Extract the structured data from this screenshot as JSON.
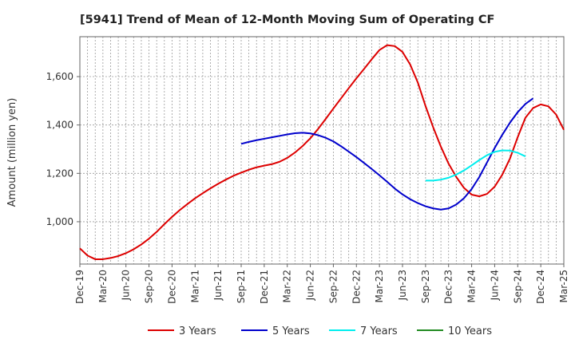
{
  "chart_data": {
    "type": "line",
    "title": "[5941]  Trend of Mean of 12-Month Moving Sum of Operating CF",
    "xlabel": "",
    "ylabel": "Amount (million yen)",
    "ylim": [
      825,
      1765
    ],
    "yticks": [
      1000,
      1200,
      1400,
      1600
    ],
    "ytick_labels": [
      "1,000",
      "1,200",
      "1,400",
      "1,600"
    ],
    "x_start": "2019-12",
    "x_end": "2025-03",
    "xticks": [
      "Dec-19",
      "Mar-20",
      "Jun-20",
      "Sep-20",
      "Dec-20",
      "Mar-21",
      "Jun-21",
      "Sep-21",
      "Dec-21",
      "Mar-22",
      "Jun-22",
      "Sep-22",
      "Dec-22",
      "Mar-23",
      "Jun-23",
      "Sep-23",
      "Dec-23",
      "Mar-24",
      "Jun-24",
      "Sep-24",
      "Dec-24",
      "Mar-25"
    ],
    "grid": true,
    "legend_position": "bottom",
    "series": [
      {
        "name": "3 Years",
        "color": "#dd0000",
        "start": "2019-12",
        "values": [
          890,
          860,
          845,
          845,
          850,
          858,
          870,
          886,
          906,
          930,
          958,
          990,
          1020,
          1048,
          1073,
          1097,
          1118,
          1138,
          1157,
          1174,
          1190,
          1203,
          1215,
          1225,
          1232,
          1238,
          1248,
          1264,
          1286,
          1313,
          1345,
          1383,
          1425,
          1468,
          1510,
          1552,
          1593,
          1632,
          1672,
          1710,
          1730,
          1726,
          1702,
          1650,
          1575,
          1478,
          1390,
          1310,
          1240,
          1185,
          1140,
          1112,
          1105,
          1115,
          1145,
          1195,
          1262,
          1350,
          1430,
          1470,
          1485,
          1477,
          1443,
          1380
        ]
      },
      {
        "name": "5 Years",
        "color": "#0000cc",
        "start": "2021-09",
        "values": [
          1322,
          1330,
          1337,
          1343,
          1349,
          1355,
          1361,
          1366,
          1368,
          1365,
          1358,
          1347,
          1332,
          1312,
          1290,
          1267,
          1243,
          1218,
          1192,
          1165,
          1137,
          1113,
          1093,
          1077,
          1064,
          1055,
          1050,
          1055,
          1071,
          1097,
          1135,
          1185,
          1245,
          1305,
          1360,
          1410,
          1453,
          1487,
          1510
        ]
      },
      {
        "name": "7 Years",
        "color": "#00eeee",
        "start": "2023-09",
        "values": [
          1170,
          1170,
          1174,
          1182,
          1195,
          1212,
          1233,
          1255,
          1275,
          1289,
          1295,
          1294,
          1285,
          1270
        ]
      },
      {
        "name": "10 Years",
        "color": "#228b22",
        "start": "2024-12",
        "values": []
      }
    ]
  }
}
